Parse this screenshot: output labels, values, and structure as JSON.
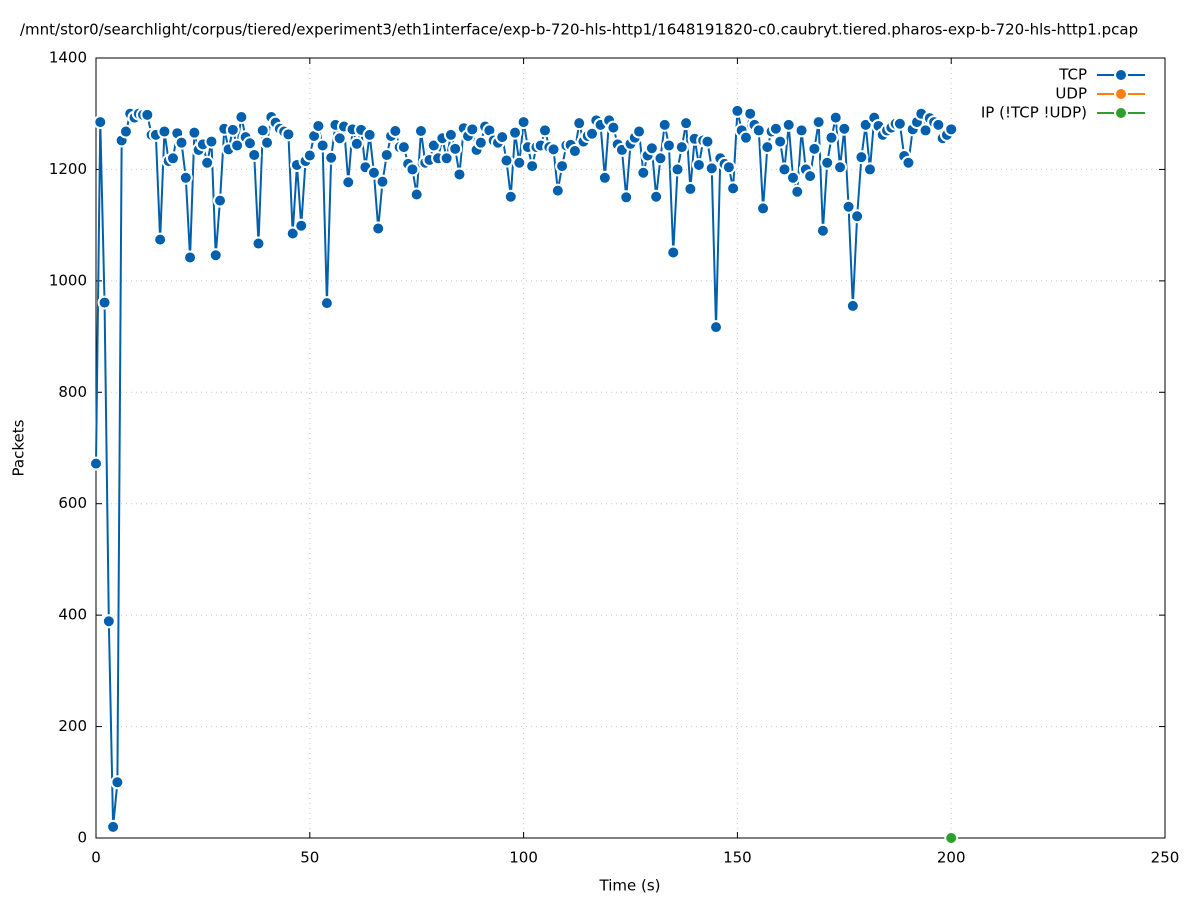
{
  "chart_data": {
    "type": "line",
    "title": "/mnt/stor0/searchlight/corpus/tiered/experiment3/eth1interface/exp-b-720-hls-http1/1648191820-c0.caubryt.tiered.pharos-exp-b-720-hls-http1.pcap",
    "x_label": "Time (s)",
    "y_label": "Packets",
    "xlim": [
      0,
      250
    ],
    "xticks": [
      0,
      50,
      100,
      150,
      200,
      250
    ],
    "ylim": [
      0,
      1400
    ],
    "yticks": [
      0,
      200,
      400,
      600,
      800,
      1000,
      1200,
      1400
    ],
    "grid": true,
    "legend": "upper right",
    "series": [
      {
        "name": "TCP",
        "color": "#0060ad",
        "x": [
          0,
          1,
          2,
          3,
          4,
          5,
          6,
          7,
          8,
          9,
          10,
          11,
          12,
          13,
          14,
          15,
          16,
          17,
          18,
          19,
          20,
          21,
          22,
          23,
          24,
          25,
          26,
          27,
          28,
          29,
          30,
          31,
          32,
          33,
          34,
          35,
          36,
          37,
          38,
          39,
          40,
          41,
          42,
          43,
          44,
          45,
          46,
          47,
          48,
          49,
          50,
          51,
          52,
          53,
          54,
          55,
          56,
          57,
          58,
          59,
          60,
          61,
          62,
          63,
          64,
          65,
          66,
          67,
          68,
          69,
          70,
          71,
          72,
          73,
          74,
          75,
          76,
          77,
          78,
          79,
          80,
          81,
          82,
          83,
          84,
          85,
          86,
          87,
          88,
          89,
          90,
          91,
          92,
          93,
          94,
          95,
          96,
          97,
          98,
          99,
          100,
          101,
          102,
          103,
          104,
          105,
          106,
          107,
          108,
          109,
          110,
          111,
          112,
          113,
          114,
          115,
          116,
          117,
          118,
          119,
          120,
          121,
          122,
          123,
          124,
          125,
          126,
          127,
          128,
          129,
          130,
          131,
          132,
          133,
          134,
          135,
          136,
          137,
          138,
          139,
          140,
          141,
          142,
          143,
          144,
          145,
          146,
          147,
          148,
          149,
          150,
          151,
          152,
          153,
          154,
          155,
          156,
          157,
          158,
          159,
          160,
          161,
          162,
          163,
          164,
          165,
          166,
          167,
          168,
          169,
          170,
          171,
          172,
          173,
          174,
          175,
          176,
          177,
          178,
          179,
          180,
          181,
          182,
          183,
          184,
          185,
          186,
          187,
          188,
          189,
          190,
          191,
          192,
          193,
          194,
          195,
          196,
          197,
          198,
          199,
          200
        ],
        "values": [
          672,
          1285,
          961,
          389,
          20,
          100,
          1252,
          1268,
          1300,
          1293,
          1300,
          1298,
          1298,
          1262,
          1262,
          1074,
          1268,
          1215,
          1220,
          1265,
          1248,
          1185,
          1042,
          1266,
          1235,
          1245,
          1212,
          1250,
          1046,
          1144,
          1273,
          1236,
          1271,
          1243,
          1294,
          1258,
          1247,
          1226,
          1067,
          1270,
          1248,
          1294,
          1284,
          1273,
          1268,
          1263,
          1085,
          1208,
          1099,
          1215,
          1225,
          1260,
          1278,
          1243,
          960,
          1221,
          1280,
          1256,
          1277,
          1177,
          1272,
          1246,
          1271,
          1204,
          1262,
          1194,
          1094,
          1178,
          1226,
          1260,
          1269,
          1240,
          1240,
          1210,
          1200,
          1155,
          1269,
          1212,
          1217,
          1243,
          1220,
          1256,
          1220,
          1262,
          1237,
          1191,
          1274,
          1260,
          1272,
          1235,
          1248,
          1277,
          1270,
          1252,
          1248,
          1258,
          1216,
          1151,
          1266,
          1212,
          1285,
          1240,
          1206,
          1240,
          1243,
          1270,
          1240,
          1236,
          1162,
          1206,
          1243,
          1244,
          1233,
          1283,
          1250,
          1260,
          1264,
          1288,
          1280,
          1185,
          1288,
          1275,
          1245,
          1235,
          1150,
          1246,
          1257,
          1268,
          1194,
          1225,
          1238,
          1151,
          1220,
          1280,
          1243,
          1051,
          1200,
          1240,
          1283,
          1165,
          1255,
          1208,
          1252,
          1250,
          1202,
          917,
          1220,
          1210,
          1204,
          1166,
          1305,
          1270,
          1257,
          1300,
          1280,
          1270,
          1130,
          1240,
          1268,
          1273,
          1250,
          1200,
          1280,
          1185,
          1160,
          1270,
          1200,
          1188,
          1237,
          1285,
          1090,
          1212,
          1257,
          1293,
          1204,
          1273,
          1133,
          955,
          1116,
          1222,
          1280,
          1200,
          1293,
          1278,
          1262,
          1270,
          1275,
          1282,
          1282,
          1224,
          1212,
          1272,
          1285,
          1300,
          1270,
          1292,
          1285,
          1280,
          1256,
          1262,
          1272
        ]
      },
      {
        "name": "UDP",
        "color": "#ff7f0e",
        "x": [],
        "values": []
      },
      {
        "name": "IP (!TCP  !UDP)",
        "color": "#2ca02c",
        "x": [
          200
        ],
        "values": [
          0
        ]
      }
    ]
  }
}
